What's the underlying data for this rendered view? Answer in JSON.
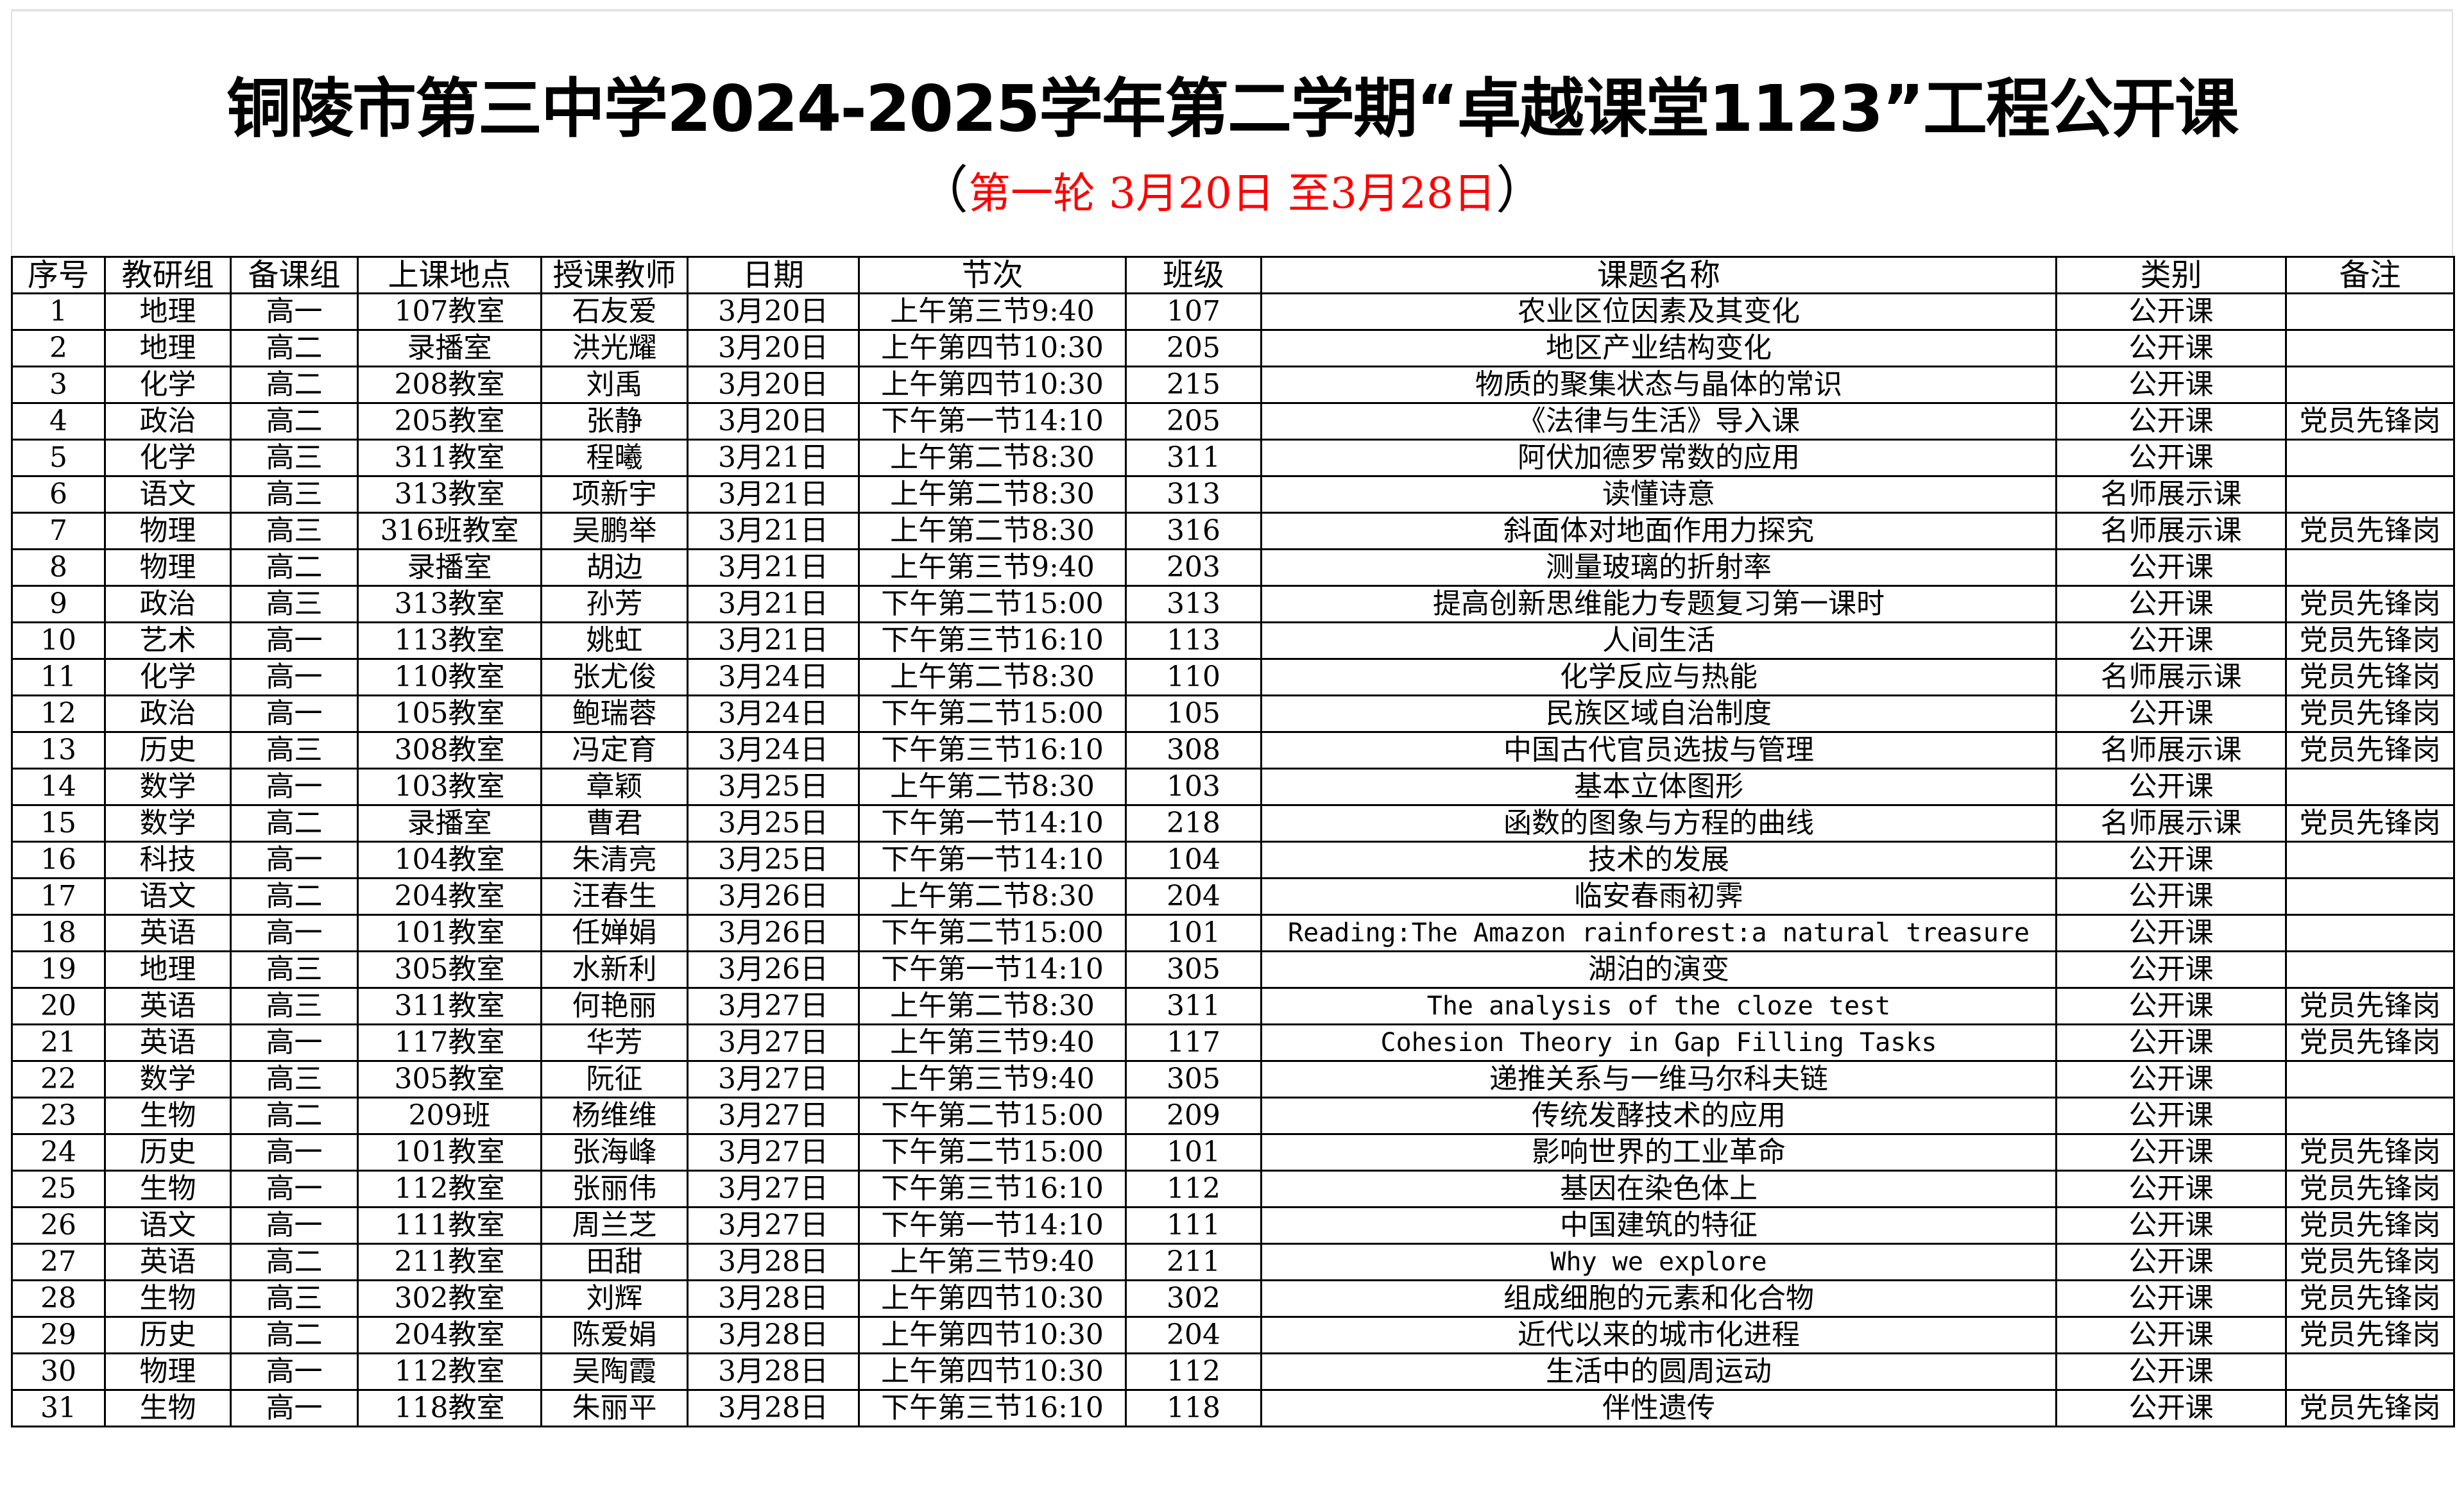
{
  "title": "铜陵市第三中学2024-2025学年第二学期“卓越课堂1123”工程公开课",
  "subtitle": {
    "open": "（",
    "text": "第一轮  3月20日 至3月28日",
    "close": "）",
    "color": "#ff0000"
  },
  "table": {
    "headers": [
      "序号",
      "教研组",
      "备课组",
      "上课地点",
      "授课教师",
      "日期",
      "节次",
      "班级",
      "课题名称",
      "类别",
      "备注"
    ],
    "rows": [
      [
        "1",
        "地理",
        "高一",
        "107教室",
        "石友爱",
        "3月20日",
        "上午第三节9:40",
        "107",
        "农业区位因素及其变化",
        "公开课",
        ""
      ],
      [
        "2",
        "地理",
        "高二",
        "录播室",
        "洪光耀",
        "3月20日",
        "上午第四节10:30",
        "205",
        "地区产业结构变化",
        "公开课",
        ""
      ],
      [
        "3",
        "化学",
        "高二",
        "208教室",
        "刘禹",
        "3月20日",
        "上午第四节10:30",
        "215",
        "物质的聚集状态与晶体的常识",
        "公开课",
        ""
      ],
      [
        "4",
        "政治",
        "高二",
        "205教室",
        "张静",
        "3月20日",
        "下午第一节14:10",
        "205",
        "《法律与生活》导入课",
        "公开课",
        "党员先锋岗"
      ],
      [
        "5",
        "化学",
        "高三",
        "311教室",
        "程曦",
        "3月21日",
        "上午第二节8:30",
        "311",
        "阿伏加德罗常数的应用",
        "公开课",
        ""
      ],
      [
        "6",
        "语文",
        "高三",
        "313教室",
        "项新宇",
        "3月21日",
        "上午第二节8:30",
        "313",
        "读懂诗意",
        "名师展示课",
        ""
      ],
      [
        "7",
        "物理",
        "高三",
        "316班教室",
        "吴鹏举",
        "3月21日",
        "上午第二节8:30",
        "316",
        "斜面体对地面作用力探究",
        "名师展示课",
        "党员先锋岗"
      ],
      [
        "8",
        "物理",
        "高二",
        "录播室",
        "胡边",
        "3月21日",
        "上午第三节9:40",
        "203",
        "测量玻璃的折射率",
        "公开课",
        ""
      ],
      [
        "9",
        "政治",
        "高三",
        "313教室",
        "孙芳",
        "3月21日",
        "下午第二节15:00",
        "313",
        "提高创新思维能力专题复习第一课时",
        "公开课",
        "党员先锋岗"
      ],
      [
        "10",
        "艺术",
        "高一",
        "113教室",
        "姚虹",
        "3月21日",
        "下午第三节16:10",
        "113",
        "人间生活",
        "公开课",
        "党员先锋岗"
      ],
      [
        "11",
        "化学",
        "高一",
        "110教室",
        "张尤俊",
        "3月24日",
        "上午第二节8:30",
        "110",
        "化学反应与热能",
        "名师展示课",
        "党员先锋岗"
      ],
      [
        "12",
        "政治",
        "高一",
        "105教室",
        "鲍瑞蓉",
        "3月24日",
        "下午第二节15:00",
        "105",
        "民族区域自治制度",
        "公开课",
        "党员先锋岗"
      ],
      [
        "13",
        "历史",
        "高三",
        "308教室",
        "冯定育",
        "3月24日",
        "下午第三节16:10",
        "308",
        "中国古代官员选拔与管理",
        "名师展示课",
        "党员先锋岗"
      ],
      [
        "14",
        "数学",
        "高一",
        "103教室",
        "章颖",
        "3月25日",
        "上午第二节8:30",
        "103",
        "基本立体图形",
        "公开课",
        ""
      ],
      [
        "15",
        "数学",
        "高二",
        "录播室",
        "曹君",
        "3月25日",
        "下午第一节14:10",
        "218",
        "函数的图象与方程的曲线",
        "名师展示课",
        "党员先锋岗"
      ],
      [
        "16",
        "科技",
        "高一",
        "104教室",
        "朱清亮",
        "3月25日",
        "下午第一节14:10",
        "104",
        "技术的发展",
        "公开课",
        ""
      ],
      [
        "17",
        "语文",
        "高二",
        "204教室",
        "汪春生",
        "3月26日",
        "上午第二节8:30",
        "204",
        "临安春雨初霁",
        "公开课",
        ""
      ],
      [
        "18",
        "英语",
        "高一",
        "101教室",
        "任婵娟",
        "3月26日",
        "下午第二节15:00",
        "101",
        "Reading:The Amazon rainforest:a natural treasure",
        "公开课",
        ""
      ],
      [
        "19",
        "地理",
        "高三",
        "305教室",
        "水新利",
        "3月26日",
        "下午第一节14:10",
        "305",
        "湖泊的演变",
        "公开课",
        ""
      ],
      [
        "20",
        "英语",
        "高三",
        "311教室",
        "何艳丽",
        "3月27日",
        "上午第二节8:30",
        "311",
        "The analysis of the cloze test",
        "公开课",
        "党员先锋岗"
      ],
      [
        "21",
        "英语",
        "高一",
        "117教室",
        "华芳",
        "3月27日",
        "上午第三节9:40",
        "117",
        "Cohesion Theory in Gap Filling Tasks",
        "公开课",
        "党员先锋岗"
      ],
      [
        "22",
        "数学",
        "高三",
        "305教室",
        "阮征",
        "3月27日",
        "上午第三节9:40",
        "305",
        "递推关系与一维马尔科夫链",
        "公开课",
        ""
      ],
      [
        "23",
        "生物",
        "高二",
        "209班",
        "杨维维",
        "3月27日",
        "下午第二节15:00",
        "209",
        "传统发酵技术的应用",
        "公开课",
        ""
      ],
      [
        "24",
        "历史",
        "高一",
        "101教室",
        "张海峰",
        "3月27日",
        "下午第二节15:00",
        "101",
        "影响世界的工业革命",
        "公开课",
        "党员先锋岗"
      ],
      [
        "25",
        "生物",
        "高一",
        "112教室",
        "张丽伟",
        "3月27日",
        "下午第三节16:10",
        "112",
        "基因在染色体上",
        "公开课",
        "党员先锋岗"
      ],
      [
        "26",
        "语文",
        "高一",
        "111教室",
        "周兰芝",
        "3月27日",
        "下午第一节14:10",
        "111",
        "中国建筑的特征",
        "公开课",
        "党员先锋岗"
      ],
      [
        "27",
        "英语",
        "高二",
        "211教室",
        "田甜",
        "3月28日",
        "上午第三节9:40",
        "211",
        "Why we explore",
        "公开课",
        "党员先锋岗"
      ],
      [
        "28",
        "生物",
        "高三",
        "302教室",
        "刘辉",
        "3月28日",
        "上午第四节10:30",
        "302",
        "组成细胞的元素和化合物",
        "公开课",
        "党员先锋岗"
      ],
      [
        "29",
        "历史",
        "高二",
        "204教室",
        "陈爱娟",
        "3月28日",
        "上午第四节10:30",
        "204",
        "近代以来的城市化进程",
        "公开课",
        "党员先锋岗"
      ],
      [
        "30",
        "物理",
        "高一",
        "112教室",
        "吴陶霞",
        "3月28日",
        "上午第四节10:30",
        "112",
        "生活中的圆周运动",
        "公开课",
        ""
      ],
      [
        "31",
        "生物",
        "高一",
        "118教室",
        "朱丽平",
        "3月28日",
        "下午第三节16:10",
        "118",
        "伴性遗传",
        "公开课",
        "党员先锋岗"
      ]
    ]
  }
}
